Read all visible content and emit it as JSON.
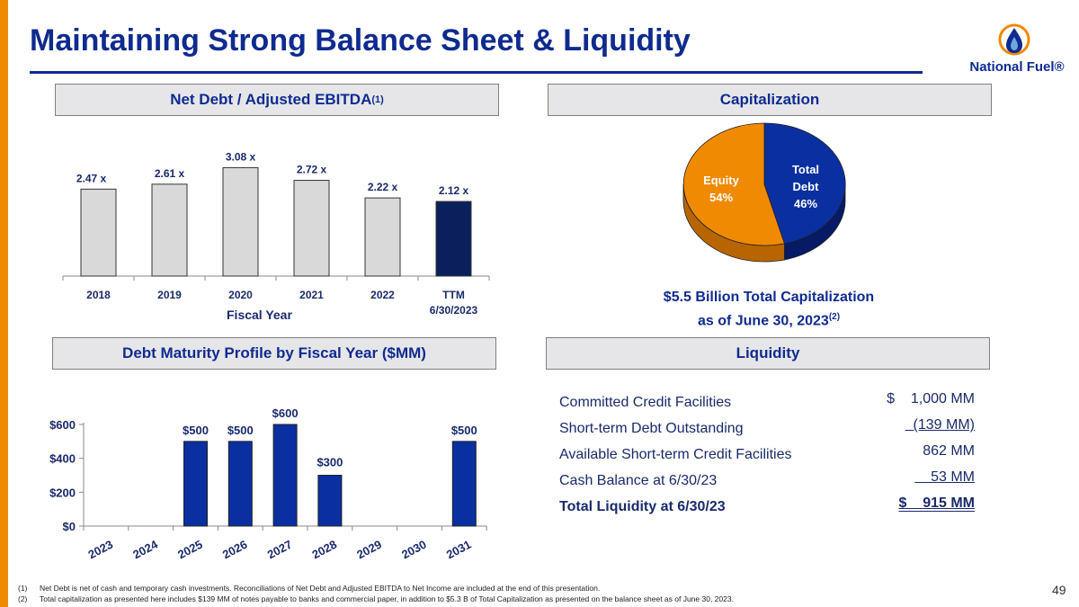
{
  "title": "Maintaining Strong Balance Sheet & Liquidity",
  "logo": {
    "text": "National Fuel®",
    "icon": "flame-drop-icon",
    "colors": {
      "ring": "#f08a00",
      "flame": "#0f2b8f"
    }
  },
  "colors": {
    "accent": "#f08a00",
    "navy": "#0f2b8f",
    "bar_gray": "#d9d9d9",
    "bar_dark": "#0b1f5c",
    "bar_blue": "#0a2fa0",
    "pie_equity": "#f08a00",
    "pie_debt": "#0a2fa0"
  },
  "sections": {
    "net_debt": {
      "label": "Net Debt / Adjusted EBITDA",
      "sup": "(1)"
    },
    "capitalization": {
      "label": "Capitalization"
    },
    "maturity": {
      "label": "Debt Maturity Profile by Fiscal Year ($MM)"
    },
    "liquidity": {
      "label": "Liquidity"
    }
  },
  "chart_data": [
    {
      "id": "net-debt-ebitda",
      "type": "bar",
      "categories": [
        "2018",
        "2019",
        "2020",
        "2021",
        "2022",
        "TTM 6/30/2023"
      ],
      "values": [
        2.47,
        2.61,
        3.08,
        2.72,
        2.22,
        2.12
      ],
      "data_labels": [
        "2.47 x",
        "2.61 x",
        "3.08 x",
        "2.72 x",
        "2.22 x",
        "2.12 x"
      ],
      "highlight_index": 5,
      "xlabel": "Fiscal Year",
      "ylim": [
        0,
        3.5
      ]
    },
    {
      "id": "capitalization",
      "type": "pie",
      "slices": [
        {
          "name": "Equity",
          "value": 54,
          "label": "54%"
        },
        {
          "name": "Total Debt",
          "value": 46,
          "label": "46%"
        }
      ]
    },
    {
      "id": "debt-maturity",
      "type": "bar",
      "categories": [
        "2023",
        "2024",
        "2025",
        "2026",
        "2027",
        "2028",
        "2029",
        "2030",
        "2031"
      ],
      "values": [
        0,
        0,
        500,
        500,
        600,
        300,
        0,
        0,
        500
      ],
      "data_labels": [
        "",
        "",
        "$500",
        "$500",
        "$600",
        "$300",
        "",
        "",
        "$500"
      ],
      "yticks": [
        "$0",
        "$200",
        "$400",
        "$600"
      ],
      "ylim": [
        0,
        600
      ]
    }
  ],
  "capitalization_note": {
    "line1": "$5.5 Billion Total Capitalization",
    "line2": "as of June 30, 2023",
    "sup": "(2)"
  },
  "liquidity": {
    "rows": [
      {
        "label": "Committed Credit Facilities",
        "value": "$    1,000 MM"
      },
      {
        "label": "Short-term Debt Outstanding",
        "value": "  (139 MM)"
      },
      {
        "label": "Available Short-term Credit Facilities",
        "value": "862 MM"
      },
      {
        "label": "Cash Balance at 6/30/23",
        "value": "    53 MM"
      },
      {
        "label": "Total Liquidity at 6/30/23",
        "value": "$    915 MM"
      }
    ]
  },
  "footnotes": [
    {
      "num": "(1)",
      "text": "Net Debt is net of cash and temporary cash investments.  Reconciliations of Net Debt and Adjusted EBITDA to Net Income are included at the end of this presentation."
    },
    {
      "num": "(2)",
      "text": "Total capitalization as presented here includes $139 MM of notes payable to banks and commercial paper, in addition to $5.3 B of Total Capitalization as presented on the balance sheet as of June 30, 2023."
    }
  ],
  "page_number": "49"
}
